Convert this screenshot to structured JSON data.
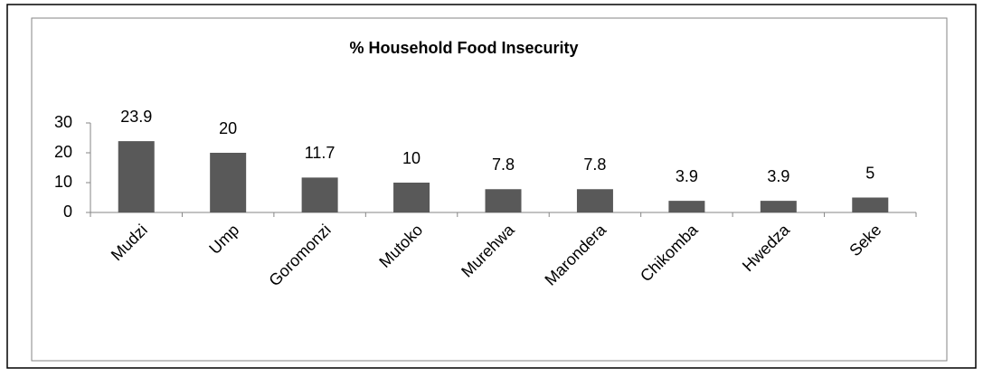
{
  "chart_data": {
    "type": "bar",
    "title": "% Household  Food Insecurity",
    "categories": [
      "Mudzi",
      "Ump",
      "Goromonzi",
      "Mutoko",
      "Murehwa",
      "Marondera",
      "Chikomba",
      "Hwedza",
      "Seke"
    ],
    "values": [
      23.9,
      20,
      11.7,
      10,
      7.8,
      7.8,
      3.9,
      3.9,
      5
    ],
    "color": "#595959",
    "ylim": [
      0,
      30
    ],
    "yticks": [
      0,
      10,
      20,
      30
    ],
    "grid": false
  }
}
